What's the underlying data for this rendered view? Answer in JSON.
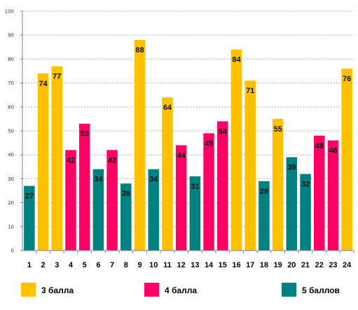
{
  "chart_data": {
    "type": "bar",
    "categories": [
      "1",
      "2",
      "3",
      "4",
      "5",
      "6",
      "7",
      "8",
      "9",
      "10",
      "11",
      "12",
      "13",
      "14",
      "15",
      "16",
      "17",
      "18",
      "19",
      "20",
      "21",
      "22",
      "23",
      "24"
    ],
    "values": [
      27,
      74,
      77,
      42,
      53,
      34,
      42,
      28,
      88,
      34,
      64,
      44,
      31,
      49,
      54,
      84,
      71,
      29,
      55,
      39,
      32,
      48,
      46,
      76
    ],
    "groups": [
      "5 баллов",
      "3 балла",
      "3 балла",
      "4 балла",
      "4 балла",
      "5 баллов",
      "4 балла",
      "5 баллов",
      "3 балла",
      "5 баллов",
      "3 балла",
      "4 балла",
      "5 баллов",
      "4 балла",
      "4 балла",
      "3 балла",
      "3 балла",
      "5 баллов",
      "3 балла",
      "5 баллов",
      "5 баллов",
      "4 балла",
      "4 балла",
      "3 балла"
    ],
    "series": [
      {
        "name": "3 балла",
        "color": "#FFC000"
      },
      {
        "name": "4 балла",
        "color": "#FF0066"
      },
      {
        "name": "5 баллов",
        "color": "#008080"
      }
    ],
    "ylim": [
      0,
      100
    ],
    "yticks": [
      0,
      10,
      20,
      30,
      40,
      50,
      60,
      70,
      80,
      90,
      100
    ],
    "grid": true,
    "legend": "bottom"
  }
}
